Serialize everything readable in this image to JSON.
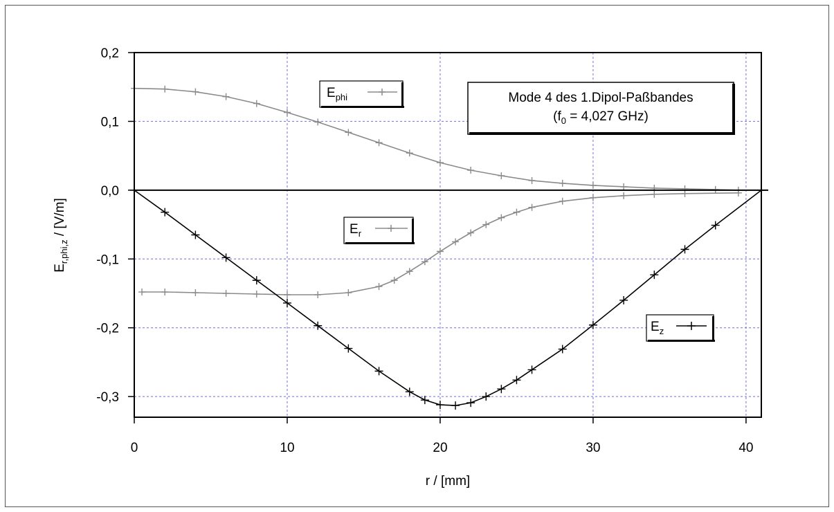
{
  "chart_data": {
    "type": "line",
    "title": "",
    "xlabel": "r / [mm]",
    "ylabel": "E",
    "ylabel_sub": "r,phi,z",
    "ylabel_unit": " / [V/m]",
    "xlim": [
      0,
      41
    ],
    "ylim": [
      -0.33,
      0.2
    ],
    "grid": true,
    "x_ticks": [
      0,
      10,
      20,
      30,
      40
    ],
    "x_tick_labels": [
      "0",
      "10",
      "20",
      "30",
      "40"
    ],
    "y_ticks": [
      0.2,
      0.1,
      0.0,
      -0.1,
      -0.2,
      -0.3
    ],
    "y_tick_labels": [
      "0,2",
      "0,1",
      "0,0",
      "-0,1",
      "-0,2",
      "-0,3"
    ],
    "annotation": {
      "line1": "Mode 4 des 1.Dipol-Paßbandes",
      "line2_prefix": "(f",
      "line2_sub": "0",
      "line2_suffix": " = 4,027 GHz)"
    },
    "series": [
      {
        "name": "E_phi",
        "label_main": "E",
        "label_sub": "phi",
        "color": "#8a8a8a",
        "x": [
          0,
          2,
          4,
          6,
          8,
          10,
          12,
          14,
          16,
          18,
          20,
          22,
          24,
          26,
          28,
          30,
          32,
          34,
          36,
          38,
          39.5
        ],
        "y": [
          0.148,
          0.147,
          0.143,
          0.136,
          0.126,
          0.113,
          0.099,
          0.084,
          0.069,
          0.054,
          0.04,
          0.029,
          0.021,
          0.014,
          0.01,
          0.007,
          0.005,
          0.003,
          0.002,
          0.001,
          0.0
        ]
      },
      {
        "name": "E_r",
        "label_main": "E",
        "label_sub": "r",
        "color": "#8a8a8a",
        "x": [
          0.5,
          2,
          4,
          6,
          8,
          10,
          12,
          14,
          16,
          17,
          18,
          19,
          20,
          21,
          22,
          23,
          24,
          25,
          26,
          28,
          30,
          32,
          34,
          36,
          39.5
        ],
        "y": [
          -0.148,
          -0.148,
          -0.149,
          -0.15,
          -0.151,
          -0.152,
          -0.152,
          -0.149,
          -0.14,
          -0.131,
          -0.118,
          -0.104,
          -0.089,
          -0.075,
          -0.062,
          -0.05,
          -0.04,
          -0.032,
          -0.025,
          -0.016,
          -0.011,
          -0.008,
          -0.006,
          -0.005,
          -0.004
        ]
      },
      {
        "name": "E_z",
        "label_main": "E",
        "label_sub": "z",
        "color": "#000000",
        "x": [
          0,
          2,
          4,
          6,
          8,
          10,
          12,
          14,
          16,
          18,
          19,
          20,
          21,
          22,
          23,
          24,
          25,
          26,
          28,
          30,
          32,
          34,
          36,
          38,
          41
        ],
        "y": [
          0.0,
          -0.032,
          -0.065,
          -0.098,
          -0.131,
          -0.164,
          -0.197,
          -0.23,
          -0.263,
          -0.293,
          -0.305,
          -0.312,
          -0.313,
          -0.309,
          -0.3,
          -0.289,
          -0.276,
          -0.261,
          -0.231,
          -0.196,
          -0.16,
          -0.123,
          -0.086,
          -0.051,
          0.0
        ]
      }
    ]
  }
}
